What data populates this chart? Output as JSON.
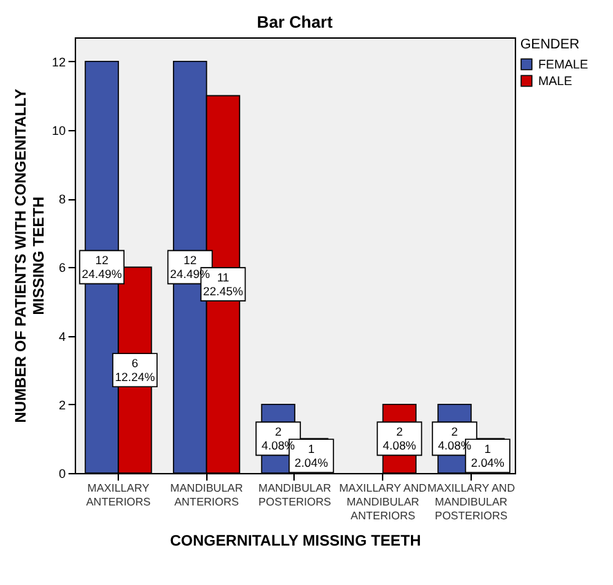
{
  "chart_data": {
    "type": "bar",
    "title": "Bar Chart",
    "xlabel": "CONGERNITALLY MISSING TEETH",
    "ylabel": "NUMBER OF PATIENTS WITH CONGENITALLY MISSING TEETH",
    "legend_title": "GENDER",
    "legend": "top right",
    "categories": [
      "MAXILLARY ANTERIORS",
      "MANDIBULAR ANTERIORS",
      "MANDIBULAR POSTERIORS",
      "MAXILLARY AND MANDIBULAR ANTERIORS",
      "MAXILLARY AND MANDIBULAR POSTERIORS"
    ],
    "series": [
      {
        "name": "FEMALE",
        "color": "#3e55a8",
        "values": [
          12,
          12,
          2,
          null,
          2
        ],
        "value_labels": [
          "12\n24.49%",
          "12\n24.49%",
          "2\n4.08%",
          null,
          "2\n4.08%"
        ]
      },
      {
        "name": "MALE",
        "color": "#cc0000",
        "values": [
          6,
          11,
          1,
          2,
          1
        ],
        "value_labels": [
          "6\n12.24%",
          "11\n22.45%",
          "1\n2.04%",
          "2\n4.08%",
          "1\n2.04%"
        ]
      }
    ],
    "ylim": [
      0,
      12.7
    ],
    "yticks": [
      0,
      2,
      4,
      6,
      8,
      10,
      12
    ],
    "grid": false
  }
}
